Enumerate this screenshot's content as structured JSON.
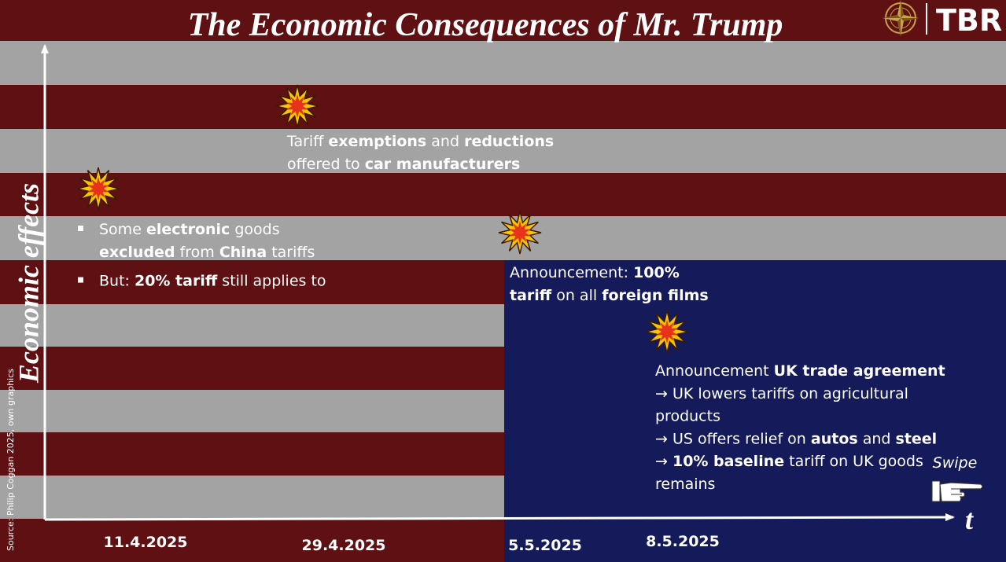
{
  "header": {
    "title": "The Economic Consequences of  Mr. Trump",
    "logo": "TBR"
  },
  "axes": {
    "y_label": "Economic effects",
    "x_label": "t"
  },
  "source": "Source: Philip Coggan 2025, own graphics",
  "swipe": "Swipe",
  "events": [
    {
      "date": "11.4.2025",
      "paragraphs": [
        {
          "bullet": true,
          "lines": [
            [
              {
                "text": "Some ",
                "bold": false
              },
              {
                "text": "electronic",
                "bold": true
              },
              {
                "text": " goods",
                "bold": false
              }
            ],
            [
              {
                "text": "excluded",
                "bold": true
              },
              {
                "text": " from ",
                "bold": false
              },
              {
                "text": "China",
                "bold": true
              },
              {
                "text": " tariffs",
                "bold": false
              }
            ]
          ]
        },
        {
          "bullet": true,
          "lines": [
            [
              {
                "text": "But: ",
                "bold": false
              },
              {
                "text": "20% tariff",
                "bold": true
              },
              {
                "text": " still applies to",
                "bold": false
              }
            ]
          ]
        }
      ]
    },
    {
      "date": "29.4.2025",
      "paragraphs": [
        {
          "bullet": false,
          "lines": [
            [
              {
                "text": "Tariff ",
                "bold": false
              },
              {
                "text": "exemptions",
                "bold": true
              },
              {
                "text": " and ",
                "bold": false
              },
              {
                "text": "reductions",
                "bold": true
              }
            ],
            [
              {
                "text": "offered to ",
                "bold": false
              },
              {
                "text": "car manufacturers",
                "bold": true
              }
            ]
          ]
        }
      ]
    },
    {
      "date": "5.5.2025",
      "paragraphs": [
        {
          "bullet": false,
          "lines": [
            [
              {
                "text": "Announcement: ",
                "bold": false
              },
              {
                "text": "100%",
                "bold": true
              }
            ],
            [
              {
                "text": "tariff",
                "bold": true
              },
              {
                "text": " on all ",
                "bold": false
              },
              {
                "text": "foreign films",
                "bold": true
              }
            ]
          ]
        }
      ]
    },
    {
      "date": "8.5.2025",
      "paragraphs": [
        {
          "bullet": false,
          "lines": [
            [
              {
                "text": "Announcement ",
                "bold": false
              },
              {
                "text": "UK trade agreement",
                "bold": true
              }
            ],
            [
              {
                "text": "→ UK lowers tariffs on agricultural",
                "bold": false
              }
            ],
            [
              {
                "text": "products",
                "bold": false
              }
            ],
            [
              {
                "text": "→ US offers relief on ",
                "bold": false
              },
              {
                "text": "autos",
                "bold": true
              },
              {
                "text": " and ",
                "bold": false
              },
              {
                "text": "steel",
                "bold": true
              }
            ],
            [
              {
                "text": "→ ",
                "bold": false
              },
              {
                "text": "10% baseline",
                "bold": true
              },
              {
                "text": " tariff on UK goods",
                "bold": false
              }
            ],
            [
              {
                "text": "remains",
                "bold": false
              }
            ]
          ]
        }
      ]
    }
  ]
}
